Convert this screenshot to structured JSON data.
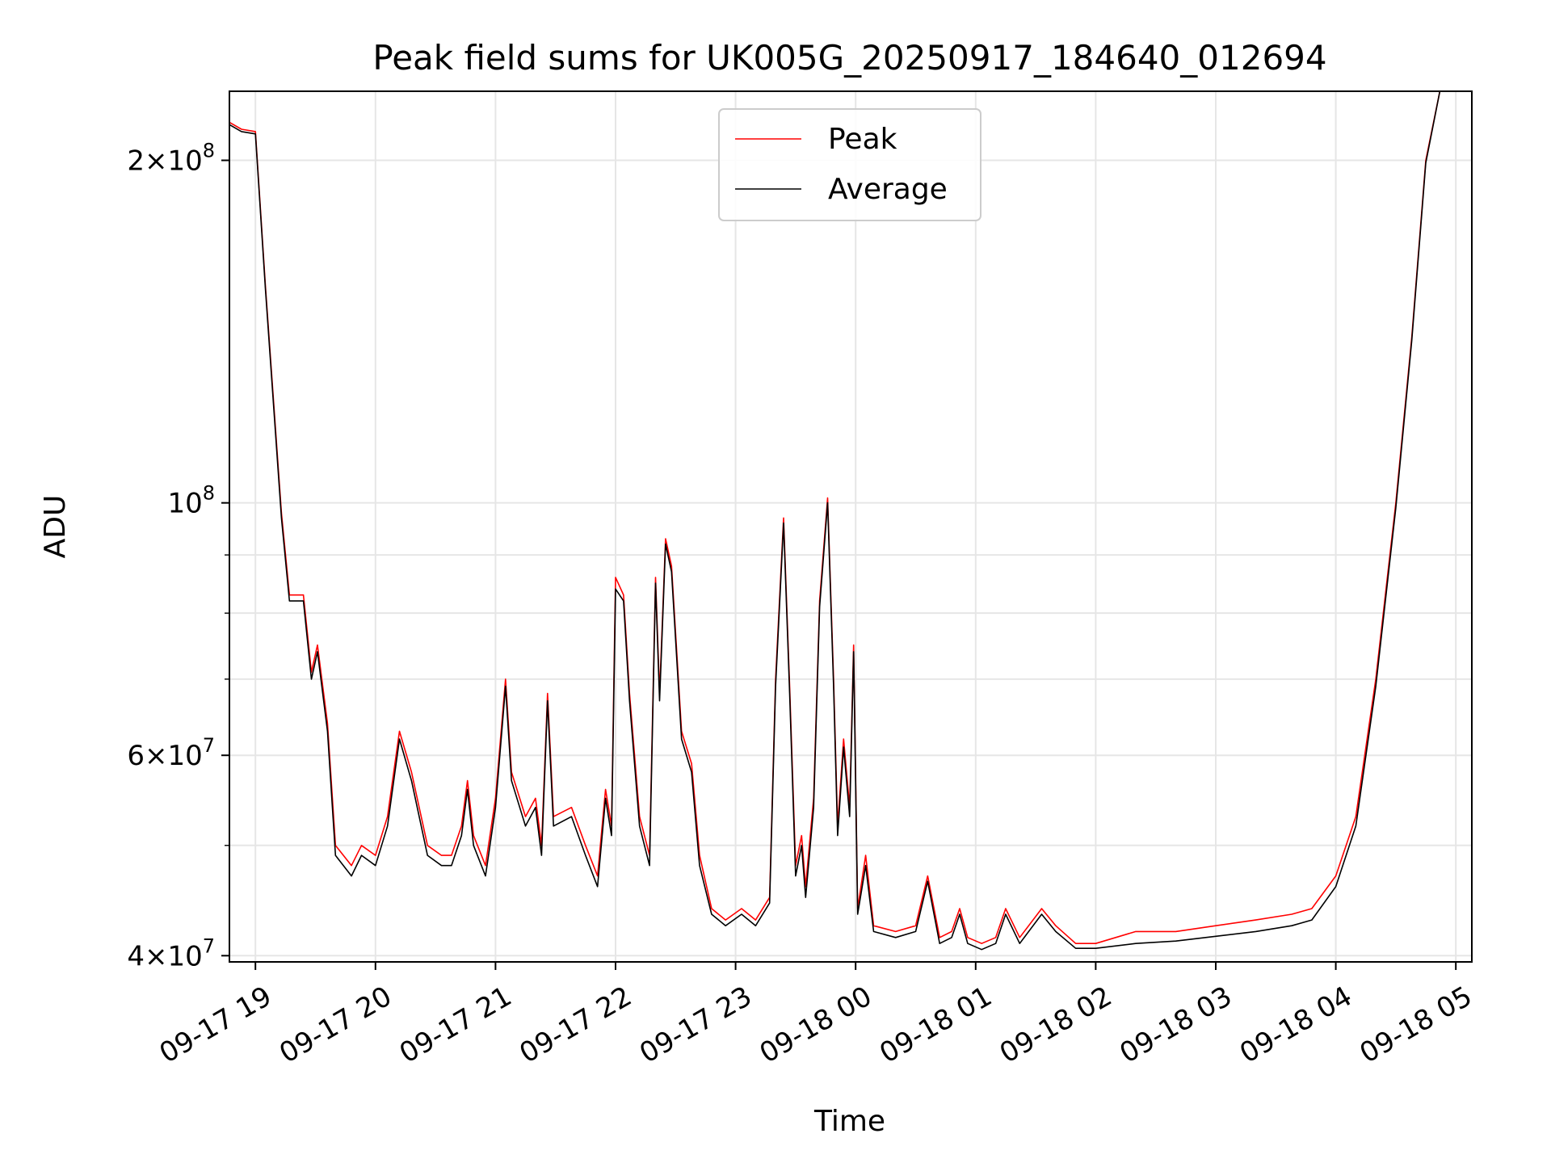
{
  "chart_data": {
    "type": "line",
    "title": "Peak field sums for UK005G_20250917_184640_012694",
    "xlabel": "Time",
    "ylabel": "ADU",
    "y_scale": "log",
    "xlim": [
      "2025-09-17 18:47",
      "2025-09-18 05:08"
    ],
    "ylim": [
      39500000,
      230000000
    ],
    "grid": true,
    "legend_position": "upper-center",
    "x_ticks": [
      {
        "t": "2025-09-17 19:00",
        "label": "09-17 19"
      },
      {
        "t": "2025-09-17 20:00",
        "label": "09-17 20"
      },
      {
        "t": "2025-09-17 21:00",
        "label": "09-17 21"
      },
      {
        "t": "2025-09-17 22:00",
        "label": "09-17 22"
      },
      {
        "t": "2025-09-17 23:00",
        "label": "09-17 23"
      },
      {
        "t": "2025-09-18 00:00",
        "label": "09-18 00"
      },
      {
        "t": "2025-09-18 01:00",
        "label": "09-18 01"
      },
      {
        "t": "2025-09-18 02:00",
        "label": "09-18 02"
      },
      {
        "t": "2025-09-18 03:00",
        "label": "09-18 03"
      },
      {
        "t": "2025-09-18 04:00",
        "label": "09-18 04"
      },
      {
        "t": "2025-09-18 05:00",
        "label": "09-18 05"
      }
    ],
    "y_ticks_major": [
      {
        "value": 40000000,
        "mant": "4",
        "exp": "7"
      },
      {
        "value": 60000000,
        "mant": "6",
        "exp": "7"
      },
      {
        "value": 100000000,
        "mant": "",
        "exp": "8"
      },
      {
        "value": 200000000,
        "mant": "2",
        "exp": "8"
      }
    ],
    "y_ticks_minor": [
      50000000,
      70000000,
      80000000,
      90000000
    ],
    "series": [
      {
        "name": "Peak",
        "color": "#ff0000",
        "points": [
          [
            "2025-09-17 18:47",
            216000000
          ],
          [
            "2025-09-17 18:53",
            213000000
          ],
          [
            "2025-09-17 19:00",
            212000000
          ],
          [
            "2025-09-17 19:05",
            155000000
          ],
          [
            "2025-09-17 19:13",
            98000000
          ],
          [
            "2025-09-17 19:17",
            83000000
          ],
          [
            "2025-09-17 19:24",
            83000000
          ],
          [
            "2025-09-17 19:28",
            71000000
          ],
          [
            "2025-09-17 19:31",
            75000000
          ],
          [
            "2025-09-17 19:36",
            64000000
          ],
          [
            "2025-09-17 19:40",
            50000000
          ],
          [
            "2025-09-17 19:48",
            48000000
          ],
          [
            "2025-09-17 19:53",
            50000000
          ],
          [
            "2025-09-17 20:00",
            49000000
          ],
          [
            "2025-09-17 20:06",
            53000000
          ],
          [
            "2025-09-17 20:12",
            63000000
          ],
          [
            "2025-09-17 20:18",
            58000000
          ],
          [
            "2025-09-17 20:26",
            50000000
          ],
          [
            "2025-09-17 20:33",
            49000000
          ],
          [
            "2025-09-17 20:38",
            49000000
          ],
          [
            "2025-09-17 20:43",
            52000000
          ],
          [
            "2025-09-17 20:46",
            57000000
          ],
          [
            "2025-09-17 20:49",
            51000000
          ],
          [
            "2025-09-17 20:55",
            48000000
          ],
          [
            "2025-09-17 21:00",
            55000000
          ],
          [
            "2025-09-17 21:05",
            70000000
          ],
          [
            "2025-09-17 21:08",
            58000000
          ],
          [
            "2025-09-17 21:15",
            53000000
          ],
          [
            "2025-09-17 21:20",
            55000000
          ],
          [
            "2025-09-17 21:23",
            50000000
          ],
          [
            "2025-09-17 21:26",
            68000000
          ],
          [
            "2025-09-17 21:29",
            53000000
          ],
          [
            "2025-09-17 21:38",
            54000000
          ],
          [
            "2025-09-17 21:45",
            50000000
          ],
          [
            "2025-09-17 21:51",
            47000000
          ],
          [
            "2025-09-17 21:55",
            56000000
          ],
          [
            "2025-09-17 21:58",
            52000000
          ],
          [
            "2025-09-17 22:00",
            86000000
          ],
          [
            "2025-09-17 22:04",
            83000000
          ],
          [
            "2025-09-17 22:07",
            68000000
          ],
          [
            "2025-09-17 22:12",
            53000000
          ],
          [
            "2025-09-17 22:17",
            49000000
          ],
          [
            "2025-09-17 22:20",
            86000000
          ],
          [
            "2025-09-17 22:22",
            68000000
          ],
          [
            "2025-09-17 22:25",
            93000000
          ],
          [
            "2025-09-17 22:28",
            88000000
          ],
          [
            "2025-09-17 22:33",
            63000000
          ],
          [
            "2025-09-17 22:38",
            59000000
          ],
          [
            "2025-09-17 22:42",
            49000000
          ],
          [
            "2025-09-17 22:48",
            44000000
          ],
          [
            "2025-09-17 22:55",
            43000000
          ],
          [
            "2025-09-17 23:03",
            44000000
          ],
          [
            "2025-09-17 23:10",
            43000000
          ],
          [
            "2025-09-17 23:17",
            45000000
          ],
          [
            "2025-09-17 23:20",
            70000000
          ],
          [
            "2025-09-17 23:24",
            97000000
          ],
          [
            "2025-09-17 23:27",
            69000000
          ],
          [
            "2025-09-17 23:30",
            48000000
          ],
          [
            "2025-09-17 23:33",
            51000000
          ],
          [
            "2025-09-17 23:35",
            46000000
          ],
          [
            "2025-09-17 23:39",
            55000000
          ],
          [
            "2025-09-17 23:42",
            82000000
          ],
          [
            "2025-09-17 23:46",
            101000000
          ],
          [
            "2025-09-17 23:49",
            70000000
          ],
          [
            "2025-09-17 23:51",
            52000000
          ],
          [
            "2025-09-17 23:54",
            62000000
          ],
          [
            "2025-09-17 23:57",
            54000000
          ],
          [
            "2025-09-17 23:59",
            75000000
          ],
          [
            "2025-09-18 00:01",
            44000000
          ],
          [
            "2025-09-18 00:05",
            49000000
          ],
          [
            "2025-09-18 00:09",
            42500000
          ],
          [
            "2025-09-18 00:20",
            42000000
          ],
          [
            "2025-09-18 00:30",
            42500000
          ],
          [
            "2025-09-18 00:36",
            47000000
          ],
          [
            "2025-09-18 00:42",
            41500000
          ],
          [
            "2025-09-18 00:48",
            42000000
          ],
          [
            "2025-09-18 00:52",
            44000000
          ],
          [
            "2025-09-18 00:56",
            41500000
          ],
          [
            "2025-09-18 01:03",
            41000000
          ],
          [
            "2025-09-18 01:10",
            41500000
          ],
          [
            "2025-09-18 01:15",
            44000000
          ],
          [
            "2025-09-18 01:22",
            41500000
          ],
          [
            "2025-09-18 01:33",
            44000000
          ],
          [
            "2025-09-18 01:40",
            42500000
          ],
          [
            "2025-09-18 01:50",
            41000000
          ],
          [
            "2025-09-18 02:00",
            41000000
          ],
          [
            "2025-09-18 02:20",
            42000000
          ],
          [
            "2025-09-18 02:40",
            42000000
          ],
          [
            "2025-09-18 03:00",
            42500000
          ],
          [
            "2025-09-18 03:20",
            43000000
          ],
          [
            "2025-09-18 03:38",
            43500000
          ],
          [
            "2025-09-18 03:48",
            44000000
          ],
          [
            "2025-09-18 04:00",
            47000000
          ],
          [
            "2025-09-18 04:10",
            53000000
          ],
          [
            "2025-09-18 04:20",
            70000000
          ],
          [
            "2025-09-18 04:30",
            100000000
          ],
          [
            "2025-09-18 04:38",
            140000000
          ],
          [
            "2025-09-18 04:45",
            200000000
          ],
          [
            "2025-09-18 04:52",
            230000000
          ],
          [
            "2025-09-18 04:55",
            230000000
          ]
        ]
      },
      {
        "name": "Average",
        "color": "#000000",
        "points": [
          [
            "2025-09-17 18:47",
            215000000
          ],
          [
            "2025-09-17 18:53",
            212000000
          ],
          [
            "2025-09-17 19:00",
            211000000
          ],
          [
            "2025-09-17 19:05",
            154000000
          ],
          [
            "2025-09-17 19:13",
            97000000
          ],
          [
            "2025-09-17 19:17",
            82000000
          ],
          [
            "2025-09-17 19:24",
            82000000
          ],
          [
            "2025-09-17 19:28",
            70000000
          ],
          [
            "2025-09-17 19:31",
            74000000
          ],
          [
            "2025-09-17 19:36",
            63000000
          ],
          [
            "2025-09-17 19:40",
            49000000
          ],
          [
            "2025-09-17 19:48",
            47000000
          ],
          [
            "2025-09-17 19:53",
            49000000
          ],
          [
            "2025-09-17 20:00",
            48000000
          ],
          [
            "2025-09-17 20:06",
            52000000
          ],
          [
            "2025-09-17 20:12",
            62000000
          ],
          [
            "2025-09-17 20:18",
            57000000
          ],
          [
            "2025-09-17 20:26",
            49000000
          ],
          [
            "2025-09-17 20:33",
            48000000
          ],
          [
            "2025-09-17 20:38",
            48000000
          ],
          [
            "2025-09-17 20:43",
            51000000
          ],
          [
            "2025-09-17 20:46",
            56000000
          ],
          [
            "2025-09-17 20:49",
            50000000
          ],
          [
            "2025-09-17 20:55",
            47000000
          ],
          [
            "2025-09-17 21:00",
            54000000
          ],
          [
            "2025-09-17 21:05",
            69000000
          ],
          [
            "2025-09-17 21:08",
            57000000
          ],
          [
            "2025-09-17 21:15",
            52000000
          ],
          [
            "2025-09-17 21:20",
            54000000
          ],
          [
            "2025-09-17 21:23",
            49000000
          ],
          [
            "2025-09-17 21:26",
            67000000
          ],
          [
            "2025-09-17 21:29",
            52000000
          ],
          [
            "2025-09-17 21:38",
            53000000
          ],
          [
            "2025-09-17 21:45",
            49000000
          ],
          [
            "2025-09-17 21:51",
            46000000
          ],
          [
            "2025-09-17 21:55",
            55000000
          ],
          [
            "2025-09-17 21:58",
            51000000
          ],
          [
            "2025-09-17 22:00",
            84000000
          ],
          [
            "2025-09-17 22:04",
            82000000
          ],
          [
            "2025-09-17 22:07",
            67000000
          ],
          [
            "2025-09-17 22:12",
            52000000
          ],
          [
            "2025-09-17 22:17",
            48000000
          ],
          [
            "2025-09-17 22:20",
            85000000
          ],
          [
            "2025-09-17 22:22",
            67000000
          ],
          [
            "2025-09-17 22:25",
            92000000
          ],
          [
            "2025-09-17 22:28",
            87000000
          ],
          [
            "2025-09-17 22:33",
            62000000
          ],
          [
            "2025-09-17 22:38",
            58000000
          ],
          [
            "2025-09-17 22:42",
            48000000
          ],
          [
            "2025-09-17 22:48",
            43500000
          ],
          [
            "2025-09-17 22:55",
            42500000
          ],
          [
            "2025-09-17 23:03",
            43500000
          ],
          [
            "2025-09-17 23:10",
            42500000
          ],
          [
            "2025-09-17 23:17",
            44500000
          ],
          [
            "2025-09-17 23:20",
            69000000
          ],
          [
            "2025-09-17 23:24",
            96000000
          ],
          [
            "2025-09-17 23:27",
            68000000
          ],
          [
            "2025-09-17 23:30",
            47000000
          ],
          [
            "2025-09-17 23:33",
            50000000
          ],
          [
            "2025-09-17 23:35",
            45000000
          ],
          [
            "2025-09-17 23:39",
            54000000
          ],
          [
            "2025-09-17 23:42",
            81000000
          ],
          [
            "2025-09-17 23:46",
            100000000
          ],
          [
            "2025-09-17 23:49",
            69000000
          ],
          [
            "2025-09-17 23:51",
            51000000
          ],
          [
            "2025-09-17 23:54",
            61000000
          ],
          [
            "2025-09-17 23:57",
            53000000
          ],
          [
            "2025-09-17 23:59",
            74000000
          ],
          [
            "2025-09-18 00:01",
            43500000
          ],
          [
            "2025-09-18 00:05",
            48000000
          ],
          [
            "2025-09-18 00:09",
            42000000
          ],
          [
            "2025-09-18 00:20",
            41500000
          ],
          [
            "2025-09-18 00:30",
            42000000
          ],
          [
            "2025-09-18 00:36",
            46500000
          ],
          [
            "2025-09-18 00:42",
            41000000
          ],
          [
            "2025-09-18 00:48",
            41500000
          ],
          [
            "2025-09-18 00:52",
            43500000
          ],
          [
            "2025-09-18 00:56",
            41000000
          ],
          [
            "2025-09-18 01:03",
            40500000
          ],
          [
            "2025-09-18 01:10",
            41000000
          ],
          [
            "2025-09-18 01:15",
            43500000
          ],
          [
            "2025-09-18 01:22",
            41000000
          ],
          [
            "2025-09-18 01:33",
            43500000
          ],
          [
            "2025-09-18 01:40",
            42000000
          ],
          [
            "2025-09-18 01:50",
            40600000
          ],
          [
            "2025-09-18 02:00",
            40600000
          ],
          [
            "2025-09-18 02:20",
            41000000
          ],
          [
            "2025-09-18 02:40",
            41200000
          ],
          [
            "2025-09-18 03:00",
            41600000
          ],
          [
            "2025-09-18 03:20",
            42000000
          ],
          [
            "2025-09-18 03:38",
            42500000
          ],
          [
            "2025-09-18 03:48",
            43000000
          ],
          [
            "2025-09-18 04:00",
            46000000
          ],
          [
            "2025-09-18 04:10",
            52000000
          ],
          [
            "2025-09-18 04:20",
            69000000
          ],
          [
            "2025-09-18 04:30",
            99000000
          ],
          [
            "2025-09-18 04:38",
            139000000
          ],
          [
            "2025-09-18 04:45",
            199000000
          ],
          [
            "2025-09-18 04:52",
            230000000
          ],
          [
            "2025-09-18 04:55",
            230000000
          ]
        ]
      }
    ]
  }
}
